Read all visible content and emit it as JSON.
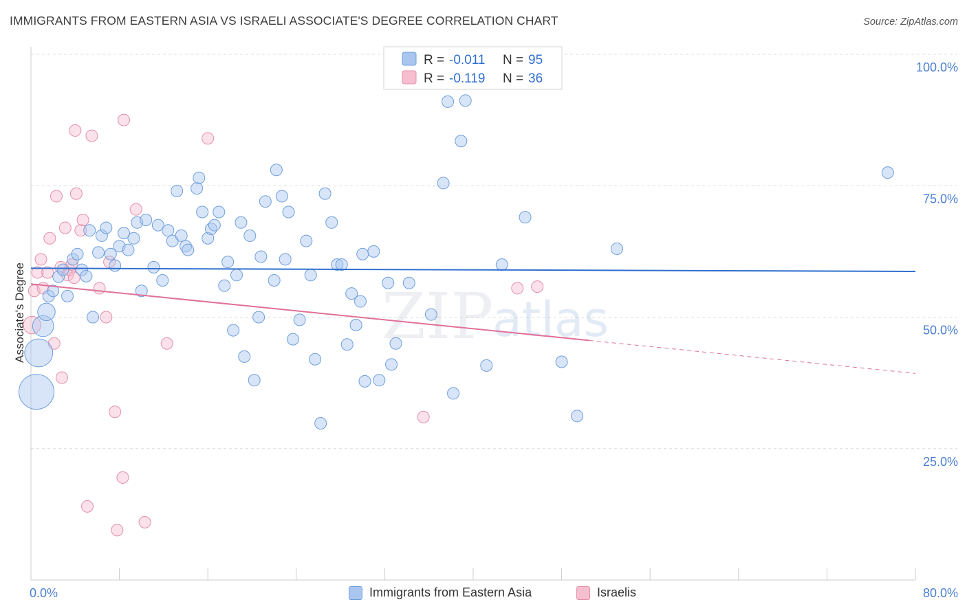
{
  "header": {
    "title": "IMMIGRANTS FROM EASTERN ASIA VS ISRAELI ASSOCIATE'S DEGREE CORRELATION CHART",
    "source": "Source: ZipAtlas.com"
  },
  "watermark": {
    "zip": "ZIP",
    "atlas": "atlas"
  },
  "colors": {
    "blue_fill": "#a9c6ef",
    "blue_stroke": "#6f9fdc",
    "blue_line": "#2f6fcf",
    "pink_fill": "#f6bfd0",
    "pink_stroke": "#e58fab",
    "pink_line": "#e0709a",
    "axis_label": "#4a7fcf",
    "grid": "#dcdcdc"
  },
  "stats_legend": {
    "rows": [
      {
        "r_label": "R =",
        "r_value": "-0.011",
        "n_label": "N =",
        "n_value": "95"
      },
      {
        "r_label": "R =",
        "r_value": "-0.119",
        "n_label": "N =",
        "n_value": "36"
      }
    ]
  },
  "bottom_legend": {
    "blue_label": "Immigrants from Eastern Asia",
    "pink_label": "Israelis"
  },
  "chart_data": {
    "type": "scatter",
    "title": "IMMIGRANTS FROM EASTERN ASIA VS ISRAELI ASSOCIATE'S DEGREE CORRELATION CHART",
    "xlabel": "",
    "ylabel": "Associate's Degree",
    "xlim": [
      0,
      80
    ],
    "ylim": [
      0,
      100
    ],
    "x_tick_labels": [
      "0.0%",
      "80.0%"
    ],
    "y_ticks": [
      25,
      50,
      75,
      100
    ],
    "y_tick_labels": [
      "25.0%",
      "50.0%",
      "75.0%",
      "100.0%"
    ],
    "grid": true,
    "legend_position": "top-center",
    "series": [
      {
        "name": "Immigrants from Eastern Asia",
        "color": "#6f9fdc",
        "trend": {
          "x": [
            0,
            80
          ],
          "y": [
            59.3,
            58.7
          ]
        },
        "points": [
          {
            "x": 0.5,
            "y": 35.8,
            "s": 3
          },
          {
            "x": 0.7,
            "y": 43.2,
            "s": 2.4
          },
          {
            "x": 1.1,
            "y": 48.3,
            "s": 1.8
          },
          {
            "x": 1.4,
            "y": 51.0,
            "s": 1.5
          },
          {
            "x": 1.6,
            "y": 54.0,
            "s": 1
          },
          {
            "x": 2.0,
            "y": 55.0,
            "s": 1
          },
          {
            "x": 2.5,
            "y": 57.7,
            "s": 1
          },
          {
            "x": 2.9,
            "y": 59.0,
            "s": 1
          },
          {
            "x": 3.3,
            "y": 54.0,
            "s": 1
          },
          {
            "x": 3.8,
            "y": 61.0,
            "s": 1
          },
          {
            "x": 4.2,
            "y": 62.0,
            "s": 1
          },
          {
            "x": 4.6,
            "y": 59.0,
            "s": 1
          },
          {
            "x": 5.0,
            "y": 57.8,
            "s": 1
          },
          {
            "x": 5.3,
            "y": 66.5,
            "s": 1
          },
          {
            "x": 5.6,
            "y": 50.0,
            "s": 1
          },
          {
            "x": 6.1,
            "y": 62.3,
            "s": 1
          },
          {
            "x": 6.4,
            "y": 65.5,
            "s": 1
          },
          {
            "x": 6.8,
            "y": 67.0,
            "s": 1
          },
          {
            "x": 7.2,
            "y": 62.0,
            "s": 1
          },
          {
            "x": 7.6,
            "y": 59.8,
            "s": 1
          },
          {
            "x": 8.0,
            "y": 63.5,
            "s": 1
          },
          {
            "x": 8.4,
            "y": 66.0,
            "s": 1
          },
          {
            "x": 8.8,
            "y": 62.8,
            "s": 1
          },
          {
            "x": 9.3,
            "y": 65.0,
            "s": 1
          },
          {
            "x": 9.6,
            "y": 68.0,
            "s": 1
          },
          {
            "x": 10.0,
            "y": 55.0,
            "s": 1
          },
          {
            "x": 10.4,
            "y": 68.5,
            "s": 1
          },
          {
            "x": 11.1,
            "y": 59.5,
            "s": 1
          },
          {
            "x": 11.5,
            "y": 67.5,
            "s": 1
          },
          {
            "x": 11.9,
            "y": 57.0,
            "s": 1
          },
          {
            "x": 12.4,
            "y": 66.5,
            "s": 1
          },
          {
            "x": 12.8,
            "y": 64.5,
            "s": 1
          },
          {
            "x": 13.2,
            "y": 74.0,
            "s": 1
          },
          {
            "x": 13.6,
            "y": 65.5,
            "s": 1
          },
          {
            "x": 14.0,
            "y": 63.5,
            "s": 1
          },
          {
            "x": 14.2,
            "y": 62.8,
            "s": 1
          },
          {
            "x": 15.0,
            "y": 74.5,
            "s": 1
          },
          {
            "x": 15.2,
            "y": 76.5,
            "s": 1
          },
          {
            "x": 15.5,
            "y": 70.0,
            "s": 1
          },
          {
            "x": 16.0,
            "y": 65.0,
            "s": 1
          },
          {
            "x": 16.3,
            "y": 66.8,
            "s": 1
          },
          {
            "x": 16.6,
            "y": 67.5,
            "s": 1
          },
          {
            "x": 17.0,
            "y": 70.0,
            "s": 1
          },
          {
            "x": 17.5,
            "y": 56.0,
            "s": 1
          },
          {
            "x": 17.8,
            "y": 60.5,
            "s": 1
          },
          {
            "x": 18.3,
            "y": 47.5,
            "s": 1
          },
          {
            "x": 18.6,
            "y": 58.0,
            "s": 1
          },
          {
            "x": 19.0,
            "y": 68.0,
            "s": 1
          },
          {
            "x": 19.3,
            "y": 42.5,
            "s": 1
          },
          {
            "x": 19.8,
            "y": 65.5,
            "s": 1
          },
          {
            "x": 20.2,
            "y": 38.0,
            "s": 1
          },
          {
            "x": 20.6,
            "y": 50.0,
            "s": 1
          },
          {
            "x": 20.8,
            "y": 61.5,
            "s": 1
          },
          {
            "x": 21.2,
            "y": 72.0,
            "s": 1
          },
          {
            "x": 22.0,
            "y": 57.0,
            "s": 1
          },
          {
            "x": 22.2,
            "y": 78.0,
            "s": 1
          },
          {
            "x": 22.7,
            "y": 73.0,
            "s": 1
          },
          {
            "x": 23.0,
            "y": 61.0,
            "s": 1
          },
          {
            "x": 23.3,
            "y": 70.0,
            "s": 1
          },
          {
            "x": 23.7,
            "y": 45.8,
            "s": 1
          },
          {
            "x": 24.3,
            "y": 49.5,
            "s": 1
          },
          {
            "x": 24.9,
            "y": 64.5,
            "s": 1
          },
          {
            "x": 25.3,
            "y": 58.0,
            "s": 1
          },
          {
            "x": 25.7,
            "y": 42.0,
            "s": 1
          },
          {
            "x": 26.2,
            "y": 29.8,
            "s": 1
          },
          {
            "x": 26.6,
            "y": 73.5,
            "s": 1
          },
          {
            "x": 27.2,
            "y": 68.0,
            "s": 1
          },
          {
            "x": 27.7,
            "y": 60.0,
            "s": 1
          },
          {
            "x": 28.1,
            "y": 60.0,
            "s": 1
          },
          {
            "x": 28.6,
            "y": 44.8,
            "s": 1
          },
          {
            "x": 29.0,
            "y": 54.5,
            "s": 1
          },
          {
            "x": 29.4,
            "y": 48.5,
            "s": 1
          },
          {
            "x": 29.8,
            "y": 53.0,
            "s": 1
          },
          {
            "x": 30.0,
            "y": 62.0,
            "s": 1
          },
          {
            "x": 30.2,
            "y": 37.8,
            "s": 1
          },
          {
            "x": 31.0,
            "y": 62.5,
            "s": 1
          },
          {
            "x": 31.5,
            "y": 38.0,
            "s": 1
          },
          {
            "x": 32.3,
            "y": 56.5,
            "s": 1
          },
          {
            "x": 32.6,
            "y": 41.0,
            "s": 1
          },
          {
            "x": 33.0,
            "y": 45.0,
            "s": 1
          },
          {
            "x": 34.2,
            "y": 56.5,
            "s": 1
          },
          {
            "x": 36.2,
            "y": 50.5,
            "s": 1
          },
          {
            "x": 37.3,
            "y": 75.5,
            "s": 1
          },
          {
            "x": 37.7,
            "y": 91.0,
            "s": 1
          },
          {
            "x": 38.2,
            "y": 35.5,
            "s": 1
          },
          {
            "x": 38.9,
            "y": 83.5,
            "s": 1
          },
          {
            "x": 39.3,
            "y": 91.2,
            "s": 1
          },
          {
            "x": 41.2,
            "y": 40.8,
            "s": 1
          },
          {
            "x": 42.6,
            "y": 60.0,
            "s": 1
          },
          {
            "x": 44.7,
            "y": 69.0,
            "s": 1
          },
          {
            "x": 48.0,
            "y": 41.5,
            "s": 1
          },
          {
            "x": 49.4,
            "y": 31.2,
            "s": 1
          },
          {
            "x": 53.0,
            "y": 63.0,
            "s": 1
          },
          {
            "x": 77.5,
            "y": 77.5,
            "s": 1
          }
        ]
      },
      {
        "name": "Israelis",
        "color": "#e58fab",
        "trend": {
          "x": [
            0,
            80
          ],
          "y": [
            56.3,
            39.3
          ],
          "solid_until_x": 50.5
        },
        "points": [
          {
            "x": 0.1,
            "y": 48.5,
            "s": 1.5
          },
          {
            "x": 0.3,
            "y": 55.0,
            "s": 1
          },
          {
            "x": 0.6,
            "y": 58.5,
            "s": 1
          },
          {
            "x": 0.9,
            "y": 61.0,
            "s": 1
          },
          {
            "x": 1.1,
            "y": 55.5,
            "s": 1
          },
          {
            "x": 1.5,
            "y": 58.5,
            "s": 1
          },
          {
            "x": 1.7,
            "y": 65.0,
            "s": 1
          },
          {
            "x": 2.1,
            "y": 45.0,
            "s": 1
          },
          {
            "x": 2.3,
            "y": 73.0,
            "s": 1
          },
          {
            "x": 2.7,
            "y": 59.5,
            "s": 1
          },
          {
            "x": 2.8,
            "y": 38.5,
            "s": 1
          },
          {
            "x": 3.1,
            "y": 67.0,
            "s": 1
          },
          {
            "x": 3.3,
            "y": 58.0,
            "s": 1
          },
          {
            "x": 3.5,
            "y": 59.0,
            "s": 1
          },
          {
            "x": 3.7,
            "y": 60.0,
            "s": 1
          },
          {
            "x": 3.9,
            "y": 57.5,
            "s": 1
          },
          {
            "x": 4.0,
            "y": 85.5,
            "s": 1
          },
          {
            "x": 4.1,
            "y": 73.5,
            "s": 1
          },
          {
            "x": 4.5,
            "y": 66.5,
            "s": 1
          },
          {
            "x": 4.7,
            "y": 68.5,
            "s": 1
          },
          {
            "x": 5.1,
            "y": 14.0,
            "s": 1
          },
          {
            "x": 5.5,
            "y": 84.5,
            "s": 1
          },
          {
            "x": 6.2,
            "y": 55.5,
            "s": 1
          },
          {
            "x": 6.8,
            "y": 50.0,
            "s": 1
          },
          {
            "x": 7.1,
            "y": 60.5,
            "s": 1
          },
          {
            "x": 7.6,
            "y": 32.0,
            "s": 1
          },
          {
            "x": 7.8,
            "y": 9.5,
            "s": 1
          },
          {
            "x": 8.3,
            "y": 19.5,
            "s": 1
          },
          {
            "x": 8.4,
            "y": 87.5,
            "s": 1
          },
          {
            "x": 9.5,
            "y": 70.5,
            "s": 1
          },
          {
            "x": 10.3,
            "y": 11.0,
            "s": 1
          },
          {
            "x": 12.3,
            "y": 45.0,
            "s": 1
          },
          {
            "x": 16.0,
            "y": 84.0,
            "s": 1
          },
          {
            "x": 35.5,
            "y": 31.0,
            "s": 1
          },
          {
            "x": 44.0,
            "y": 55.5,
            "s": 1
          },
          {
            "x": 45.8,
            "y": 55.8,
            "s": 1
          }
        ]
      }
    ]
  }
}
